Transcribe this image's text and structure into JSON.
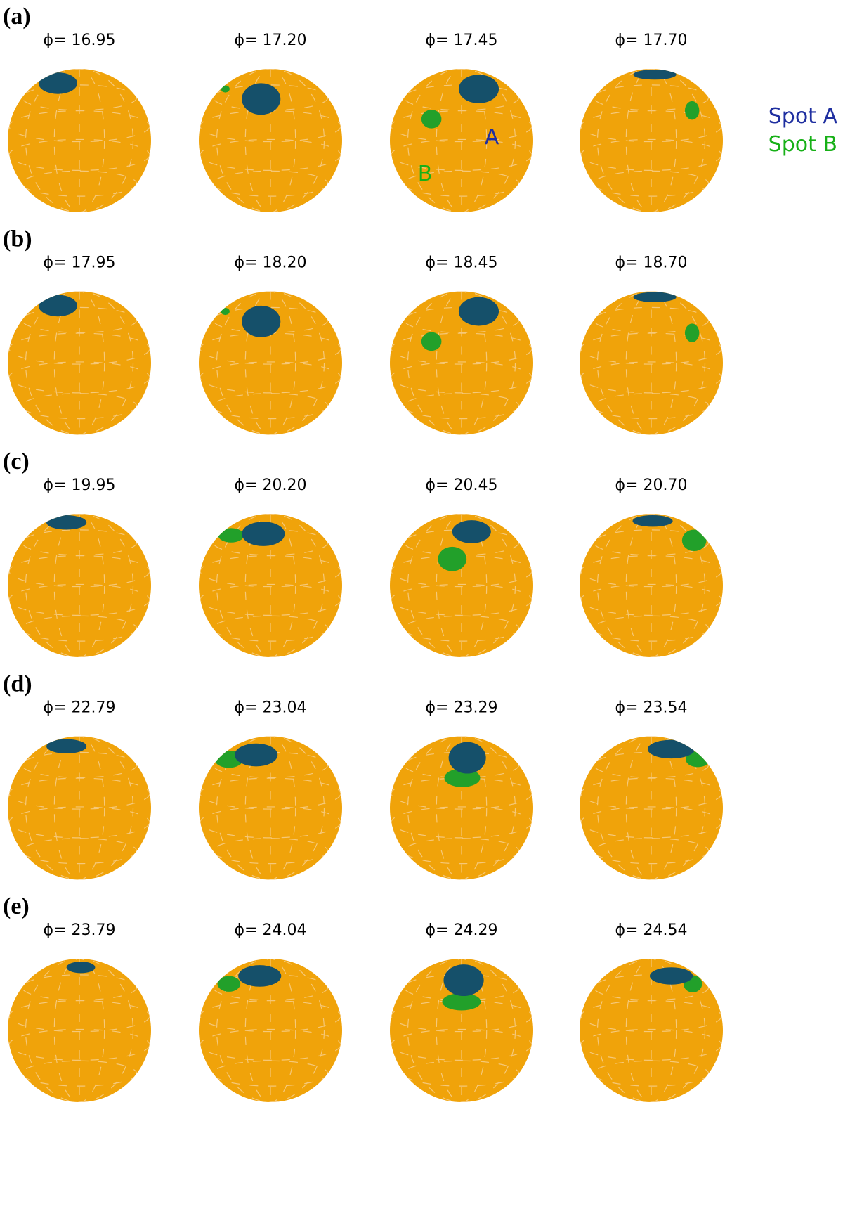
{
  "panels": [
    {
      "label": "(a)",
      "phases": [
        "ϕ= 16.95",
        "ϕ= 17.20",
        "ϕ= 17.45",
        "ϕ= 17.70"
      ]
    },
    {
      "label": "(b)",
      "phases": [
        "ϕ= 17.95",
        "ϕ= 18.20",
        "ϕ= 18.45",
        "ϕ= 18.70"
      ]
    },
    {
      "label": "(c)",
      "phases": [
        "ϕ= 19.95",
        "ϕ= 20.20",
        "ϕ= 20.45",
        "ϕ= 20.70"
      ]
    },
    {
      "label": "(d)",
      "phases": [
        "ϕ= 22.79",
        "ϕ= 23.04",
        "ϕ= 23.29",
        "ϕ= 23.54"
      ]
    },
    {
      "label": "(e)",
      "phases": [
        "ϕ= 23.79",
        "ϕ= 24.04",
        "ϕ= 24.29",
        "ϕ= 24.54"
      ]
    }
  ],
  "annotations": {
    "spot_a": "A",
    "spot_b": "B"
  },
  "legend": [
    "Spot A",
    "Spot B"
  ]
}
